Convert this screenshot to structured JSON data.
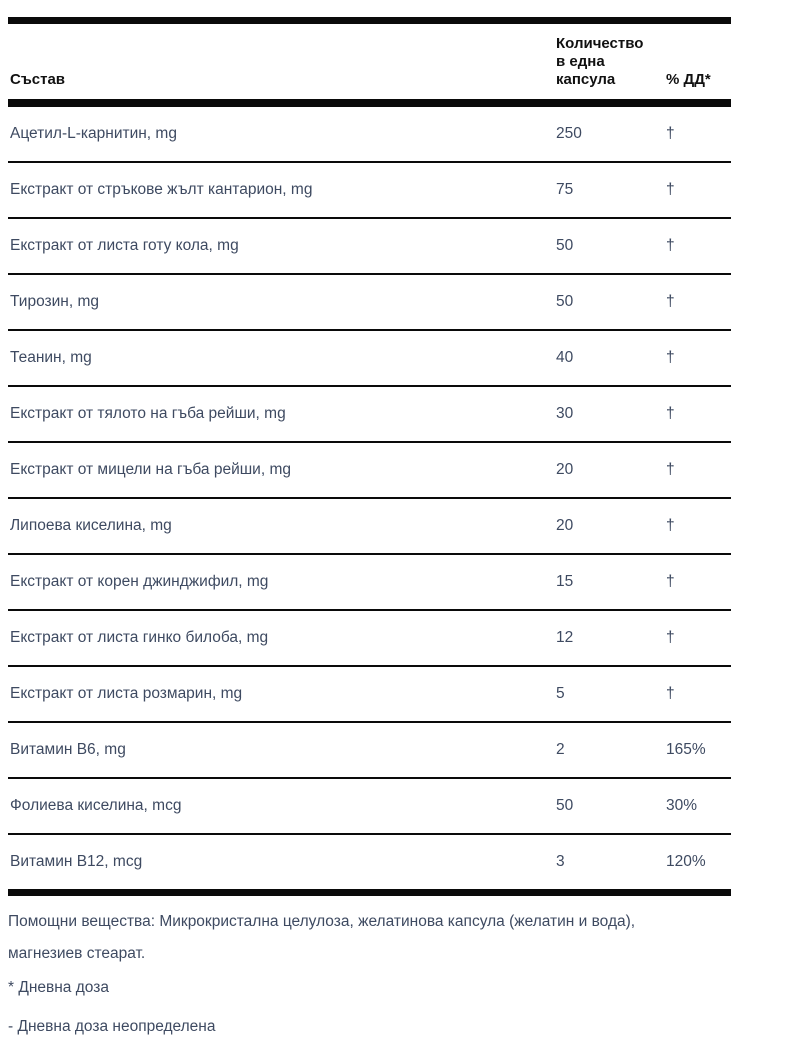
{
  "table": {
    "header": {
      "ingredient_label": "Състав",
      "amount_label": "Количество в една капсула",
      "dd_label": "% ДД*"
    },
    "rows": [
      {
        "name": "Ацетил-L-карнитин, mg",
        "amount": "250",
        "dd": "†"
      },
      {
        "name": "Екстракт от стръкове жълт кантарион, mg",
        "amount": "75",
        "dd": "†"
      },
      {
        "name": "Екстракт от листа готу кола, mg",
        "amount": "50",
        "dd": "†"
      },
      {
        "name": "Тирозин, mg",
        "amount": "50",
        "dd": "†"
      },
      {
        "name": "Теанин, mg",
        "amount": "40",
        "dd": "†"
      },
      {
        "name": "Екстракт от тялото на гъба рейши, mg",
        "amount": "30",
        "dd": "†"
      },
      {
        "name": "Екстракт от мицели на гъба рейши, mg",
        "amount": "20",
        "dd": "†"
      },
      {
        "name": "Липоева киселина, mg",
        "amount": "20",
        "dd": "†"
      },
      {
        "name": "Екстракт от корен джинджифил, mg",
        "amount": "15",
        "dd": "†"
      },
      {
        "name": "Екстракт от листа гинко билоба, mg",
        "amount": "12",
        "dd": "†"
      },
      {
        "name": "Екстракт от листа розмарин, mg",
        "amount": "5",
        "dd": "†"
      },
      {
        "name": "Витамин B6, mg",
        "amount": "2",
        "dd": "165%"
      },
      {
        "name": "Фолиева киселина, mcg",
        "amount": "50",
        "dd": "30%"
      },
      {
        "name": "Витамин B12, mcg",
        "amount": "3",
        "dd": "120%"
      }
    ]
  },
  "footer": {
    "excipients": "Помощни вещества: Микрокристална целулоза, желатинова капсула (желатин и вода), магнезиев стеарат.",
    "daily_dose_note": "* Дневна доза",
    "undefined_dose_note": "- Дневна доза неопределена"
  },
  "colors": {
    "rule": "#0a0a0a",
    "header_text": "#111111",
    "body_text": "#3e4a61"
  }
}
